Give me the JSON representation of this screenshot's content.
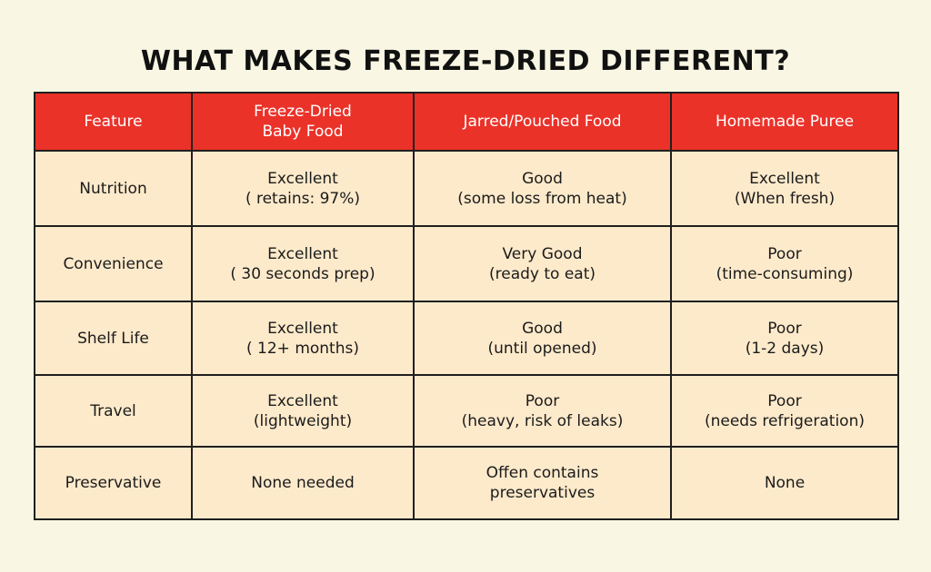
{
  "title": "WHAT MAKES FREEZE-DRIED DIFFERENT?",
  "colors": {
    "background": "#f9f7e3",
    "header": "#ea3229",
    "cell": "#fdeacb",
    "border": "#1f1f1f"
  },
  "table": {
    "headers": [
      [
        "Feature"
      ],
      [
        "Freeze-Dried",
        "Baby Food"
      ],
      [
        "Jarred/Pouched Food"
      ],
      [
        "Homemade Puree"
      ]
    ],
    "rows": [
      {
        "feature": "Nutrition",
        "cells": [
          [
            "Excellent",
            "( retains: 97%)"
          ],
          [
            "Good",
            "(some loss from heat)"
          ],
          [
            "Excellent",
            "(When fresh)"
          ]
        ]
      },
      {
        "feature": "Convenience",
        "cells": [
          [
            "Excellent",
            "( 30 seconds prep)"
          ],
          [
            "Very Good",
            "(ready to eat)"
          ],
          [
            "Poor",
            "(time-consuming)"
          ]
        ]
      },
      {
        "feature": "Shelf Life",
        "cells": [
          [
            "Excellent",
            "( 12+ months)"
          ],
          [
            "Good",
            "(until opened)"
          ],
          [
            "Poor",
            "(1-2 days)"
          ]
        ]
      },
      {
        "feature": "Travel",
        "cells": [
          [
            "Excellent",
            "(lightweight)"
          ],
          [
            "Poor",
            "(heavy, risk of leaks)"
          ],
          [
            "Poor",
            "(needs refrigeration)"
          ]
        ]
      },
      {
        "feature": "Preservative",
        "cells": [
          [
            "None needed"
          ],
          [
            "Offen contains",
            "preservatives"
          ],
          [
            "None"
          ]
        ]
      }
    ]
  }
}
